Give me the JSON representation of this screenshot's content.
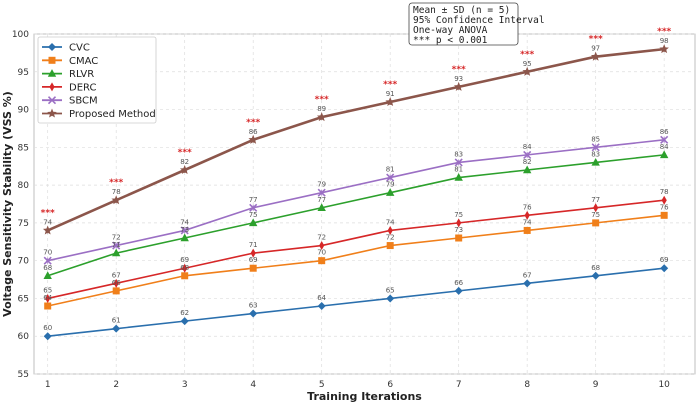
{
  "chart_data": {
    "type": "line",
    "title": "",
    "xlabel": "Training Iterations",
    "ylabel": "Voltage Sensitivity Stability (VSS %)",
    "x": [
      1,
      2,
      3,
      4,
      5,
      6,
      7,
      8,
      9,
      10
    ],
    "xlim": [
      0.8,
      10.45
    ],
    "ylim": [
      55,
      100
    ],
    "yticks": [
      55,
      60,
      65,
      70,
      75,
      80,
      85,
      90,
      95,
      100
    ],
    "grid": true,
    "legend_position": "top-left",
    "series": [
      {
        "name": "CVC",
        "color": "#2a6fad",
        "marker": "diamond",
        "values": [
          60,
          61,
          62,
          63,
          64,
          65,
          66,
          67,
          68,
          69
        ]
      },
      {
        "name": "CMAC",
        "color": "#f07f1a",
        "marker": "square",
        "values": [
          64,
          66,
          68,
          69,
          70,
          72,
          73,
          74,
          75,
          76
        ]
      },
      {
        "name": "RLVR",
        "color": "#2ca02c",
        "marker": "triangle",
        "values": [
          68,
          71,
          73,
          75,
          77,
          79,
          81,
          82,
          83,
          84
        ]
      },
      {
        "name": "DERC",
        "color": "#d62728",
        "marker": "thin-diamond",
        "values": [
          65,
          67,
          69,
          71,
          72,
          74,
          75,
          76,
          77,
          78
        ]
      },
      {
        "name": "SBCM",
        "color": "#9b6fc4",
        "marker": "x",
        "values": [
          70,
          72,
          74,
          77,
          79,
          81,
          83,
          84,
          85,
          86
        ]
      },
      {
        "name": "Proposed Method",
        "color": "#8c564b",
        "marker": "star",
        "values": [
          74,
          78,
          82,
          86,
          89,
          91,
          93,
          95,
          97,
          98
        ]
      }
    ],
    "significance_label": "***",
    "significance_x": [
      1,
      2,
      3,
      4,
      5,
      6,
      7,
      8,
      9,
      10
    ],
    "annotation_lines": [
      "Mean ± SD (n = 5)",
      "95% Confidence Interval",
      "One-way ANOVA",
      "*** p < 0.001"
    ]
  }
}
